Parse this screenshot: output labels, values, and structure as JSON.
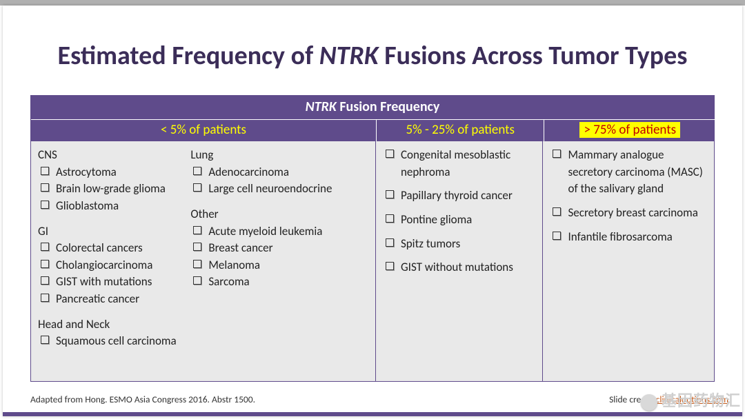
{
  "title": {
    "prefix": "Estimated Frequency of ",
    "gene": "NTRK",
    "suffix": " Fusions Across Tumor Types"
  },
  "table": {
    "header_prefix": "NTRK",
    "header_suffix": " Fusion Frequency",
    "cols": {
      "a": "< 5% of patients",
      "b": "5% - 25% of patients",
      "c": "> 75% of patients"
    }
  },
  "lowfreq": {
    "left": [
      {
        "title": "CNS",
        "items": [
          "Astrocytoma",
          "Brain low-grade glioma",
          "Glioblastoma"
        ]
      },
      {
        "title": "GI",
        "items": [
          "Colorectal cancers",
          "Cholangiocarcinoma",
          "GIST with mutations",
          "Pancreatic cancer"
        ]
      },
      {
        "title": "Head and Neck",
        "items": [
          "Squamous cell carcinoma"
        ]
      }
    ],
    "right": [
      {
        "title": "Lung",
        "items": [
          "Adenocarcinoma",
          "Large cell neuroendocrine"
        ]
      },
      {
        "title": "Other",
        "items": [
          "Acute myeloid leukemia",
          "Breast cancer",
          "Melanoma",
          "Sarcoma"
        ]
      }
    ]
  },
  "midfreq": [
    "Congenital mesoblastic nephroma",
    "Papillary thyroid cancer",
    "Pontine glioma",
    "Spitz tumors",
    "GIST without mutations"
  ],
  "highfreq": [
    "Mammary analogue secretory carcinoma (MASC) of the salivary gland",
    "Secretory breast carcinoma",
    "Infantile fibrosarcoma"
  ],
  "footer": {
    "left": "Adapted from Hong. ESMO Asia Congress 2016. Abstr 1500.",
    "right_label": "Slide credit: ",
    "right_link": "clinicaloptions.com"
  },
  "watermark": "基因药物汇"
}
